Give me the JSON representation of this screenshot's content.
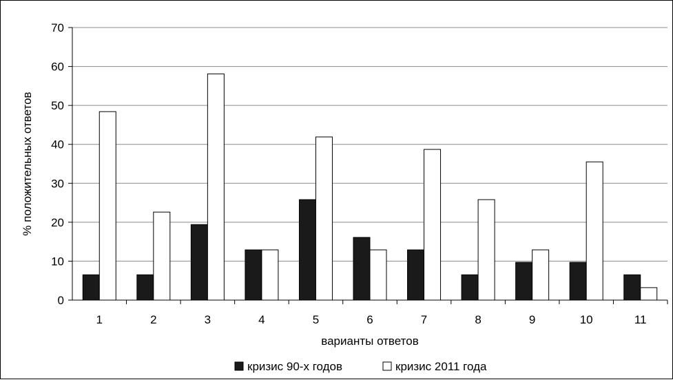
{
  "chart_data": {
    "type": "bar",
    "categories": [
      "1",
      "2",
      "3",
      "4",
      "5",
      "6",
      "7",
      "8",
      "9",
      "10",
      "11"
    ],
    "series": [
      {
        "name": "кризис 90-х годов",
        "values": [
          6.5,
          6.5,
          19.4,
          12.9,
          25.8,
          16.1,
          12.9,
          6.5,
          9.7,
          9.7,
          6.5
        ],
        "color": "#1a1a1a"
      },
      {
        "name": "кризис 2011 года",
        "values": [
          48.4,
          22.6,
          58.1,
          12.9,
          41.9,
          12.9,
          38.7,
          25.8,
          12.9,
          35.5,
          3.2
        ],
        "color": "#ffffff"
      }
    ],
    "xlabel": "варианты ответов",
    "ylabel": "% положительных ответов",
    "ylim": [
      0,
      70
    ],
    "yticks": [
      0,
      10,
      20,
      30,
      40,
      50,
      60,
      70
    ],
    "grid": true,
    "legend_position": "bottom"
  }
}
